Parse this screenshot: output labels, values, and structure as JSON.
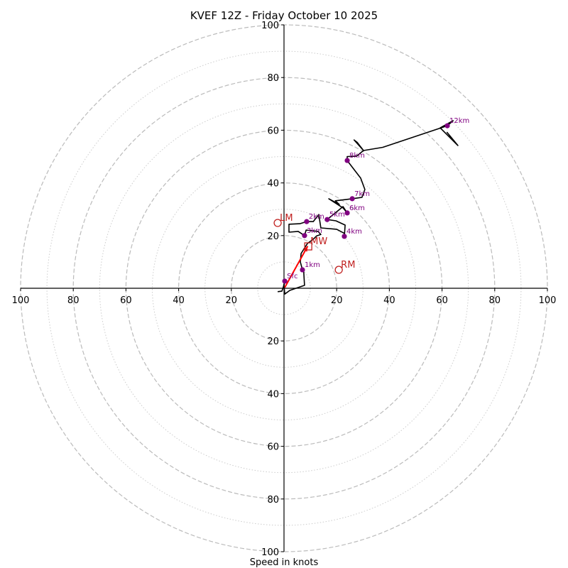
{
  "chart_data": {
    "type": "line",
    "subtype": "hodograph",
    "title": "KVEF 12Z - Friday October 10 2025",
    "xlabel": "Speed in knots",
    "ylabel": "",
    "range": [
      -100,
      100
    ],
    "ring_major": [
      20,
      40,
      60,
      80,
      100
    ],
    "ring_minor": [
      10,
      30,
      50,
      70,
      90
    ],
    "x_tick_labels": [
      "100",
      "80",
      "60",
      "40",
      "20",
      "20",
      "40",
      "60",
      "80",
      "100"
    ],
    "x_tick_values": [
      -100,
      -80,
      -60,
      -40,
      -20,
      20,
      40,
      60,
      80,
      100
    ],
    "y_tick_labels": [
      "100",
      "80",
      "60",
      "40",
      "20",
      "20",
      "40",
      "60",
      "80",
      "100"
    ],
    "y_tick_values": [
      100,
      80,
      60,
      40,
      20,
      -20,
      -40,
      -60,
      -80,
      -100
    ],
    "grid": true,
    "colors": {
      "trace": "#000000",
      "height_marker": "#800080",
      "storm_motion": "#c0201f",
      "shear_vector": "#ff0000",
      "grid": "#bbbbbb"
    },
    "wind_profile_uv": [
      [
        -2.4,
        -1.3
      ],
      [
        -0.8,
        -1.1
      ],
      [
        -0.3,
        0.3
      ],
      [
        0.3,
        2.7
      ],
      [
        0.0,
        1.0
      ],
      [
        0.3,
        -2.2
      ],
      [
        2.2,
        -0.8
      ],
      [
        7.8,
        1.1
      ],
      [
        7.5,
        6.2
      ],
      [
        7.0,
        7.0
      ],
      [
        6.2,
        10.0
      ],
      [
        6.5,
        13.2
      ],
      [
        8.9,
        17.0
      ],
      [
        11.1,
        18.6
      ],
      [
        12.4,
        19.9
      ],
      [
        14.0,
        20.4
      ],
      [
        12.9,
        21.6
      ],
      [
        8.4,
        22.1
      ],
      [
        7.8,
        20.0
      ],
      [
        5.4,
        21.6
      ],
      [
        1.9,
        21.3
      ],
      [
        1.9,
        24.3
      ],
      [
        6.0,
        24.5
      ],
      [
        8.6,
        25.3
      ],
      [
        11.1,
        25.3
      ],
      [
        13.2,
        28.0
      ],
      [
        14.0,
        22.9
      ],
      [
        20.0,
        22.4
      ],
      [
        23.0,
        20.8
      ],
      [
        22.9,
        19.7
      ],
      [
        23.2,
        24.0
      ],
      [
        19.7,
        25.6
      ],
      [
        16.4,
        26.1
      ],
      [
        22.4,
        31.0
      ],
      [
        24.0,
        28.6
      ],
      [
        22.4,
        30.5
      ],
      [
        20.8,
        31.5
      ],
      [
        17.0,
        34.0
      ],
      [
        21.0,
        31.8
      ],
      [
        19.5,
        33.2
      ],
      [
        25.9,
        34.0
      ],
      [
        29.6,
        34.5
      ],
      [
        30.7,
        37.5
      ],
      [
        29.1,
        41.8
      ],
      [
        24.0,
        48.5
      ],
      [
        24.0,
        50.0
      ],
      [
        27.5,
        50.1
      ],
      [
        30.2,
        52.3
      ],
      [
        27.8,
        55.4
      ],
      [
        26.6,
        56.3
      ],
      [
        30.2,
        52.3
      ],
      [
        37.5,
        53.5
      ],
      [
        62.0,
        61.7
      ],
      [
        64.2,
        63.6
      ],
      [
        59.3,
        60.9
      ],
      [
        63.6,
        56.6
      ],
      [
        66.0,
        54.2
      ],
      [
        61.8,
        59.3
      ]
    ],
    "height_markers": [
      {
        "label": "Sfc",
        "u": 0.3,
        "v": 2.7
      },
      {
        "label": "1km",
        "u": 7.0,
        "v": 7.0
      },
      {
        "label": "2km",
        "u": 8.6,
        "v": 25.3
      },
      {
        "label": "3km",
        "u": 7.8,
        "v": 20.0
      },
      {
        "label": "4km",
        "u": 22.9,
        "v": 19.7
      },
      {
        "label": "5km",
        "u": 16.4,
        "v": 26.1
      },
      {
        "label": "6km",
        "u": 24.0,
        "v": 28.6
      },
      {
        "label": "7km",
        "u": 25.9,
        "v": 34.0
      },
      {
        "label": "8km",
        "u": 24.0,
        "v": 48.5
      },
      {
        "label": "12km",
        "u": 62.0,
        "v": 61.7
      }
    ],
    "storm_motions": [
      {
        "label": "LM",
        "u": -2.4,
        "v": 24.8,
        "marker": "circle"
      },
      {
        "label": "RM",
        "u": 20.8,
        "v": 7.0,
        "marker": "circle"
      },
      {
        "label": "MW",
        "u": 9.2,
        "v": 15.9,
        "marker": "square"
      }
    ],
    "shear_vector": {
      "from": [
        0.3,
        0.3
      ],
      "to": [
        9.0,
        16.0
      ]
    }
  }
}
